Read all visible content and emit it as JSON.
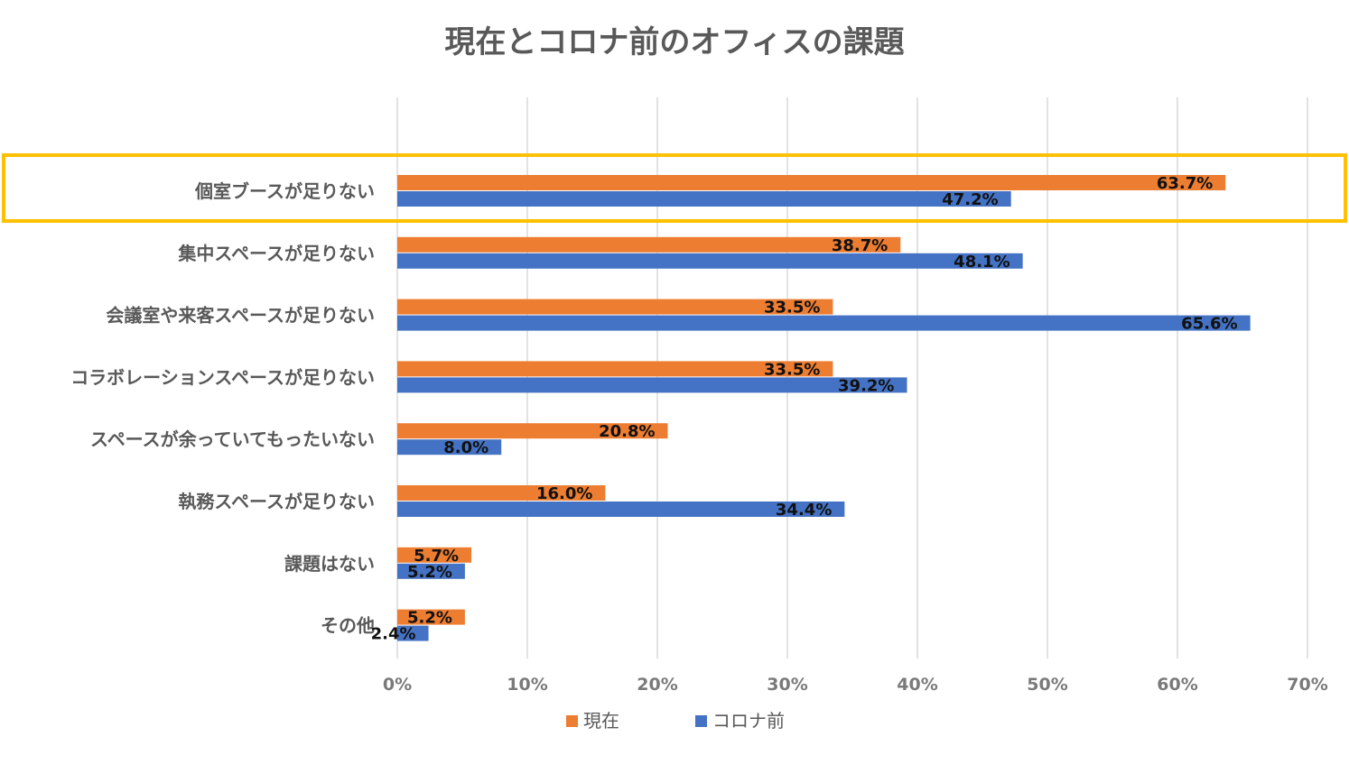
{
  "chart_data": {
    "type": "bar",
    "orientation": "horizontal",
    "title": "現在とコロナ前のオフィスの課題",
    "categories": [
      "個室ブースが足りない",
      "集中スペースが足りない",
      "会議室や来客スペースが足りない",
      "コラボレーションスペースが足りない",
      "スペースが余っていてもったいない",
      "執務スペースが足りない",
      "課題はない",
      "その他"
    ],
    "series": [
      {
        "name": "現在",
        "color": "#ED7D31",
        "values": [
          63.7,
          38.7,
          33.5,
          33.5,
          20.8,
          16.0,
          5.7,
          5.2
        ],
        "labels": [
          "63.7%",
          "38.7%",
          "33.5%",
          "33.5%",
          "20.8%",
          "16.0%",
          "5.7%",
          "5.2%"
        ]
      },
      {
        "name": "コロナ前",
        "color": "#4472C4",
        "values": [
          47.2,
          48.1,
          65.6,
          39.2,
          8.0,
          34.4,
          5.2,
          2.4
        ],
        "labels": [
          "47.2%",
          "48.1%",
          "65.6%",
          "39.2%",
          "8.0%",
          "34.4%",
          "5.2%",
          "2.4%"
        ]
      }
    ],
    "xlim": [
      0,
      70
    ],
    "xticks": [
      0,
      10,
      20,
      30,
      40,
      50,
      60,
      70
    ],
    "xtick_labels": [
      "0%",
      "10%",
      "20%",
      "30%",
      "40%",
      "50%",
      "60%",
      "70%"
    ],
    "grid": "vertical",
    "legend": "bottom",
    "highlight": {
      "category": "個室ブースが足りない",
      "color": "#FFC000"
    }
  }
}
